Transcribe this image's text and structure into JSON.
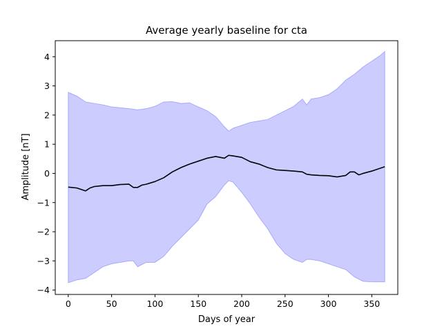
{
  "chart_data": {
    "type": "area",
    "title": "Average yearly baseline for cta",
    "xlabel": "Days of year",
    "ylabel": "Amplitude [nT]",
    "xlim": [
      -15,
      380
    ],
    "ylim": [
      -4.15,
      4.55
    ],
    "xticks": [
      0,
      50,
      100,
      150,
      200,
      250,
      300,
      350
    ],
    "yticks": [
      -4,
      -3,
      -2,
      -1,
      0,
      1,
      2,
      3,
      4
    ],
    "ytick_labels": [
      "−4",
      "−3",
      "−2",
      "−1",
      "0",
      "1",
      "2",
      "3",
      "4"
    ],
    "grid": false,
    "colors": {
      "band": "#0000ff",
      "band_opacity": 0.2,
      "line": "#000000"
    },
    "series": [
      {
        "kind": "band",
        "x": [
          0,
          10,
          20,
          30,
          40,
          50,
          60,
          70,
          75,
          80,
          90,
          100,
          110,
          120,
          130,
          140,
          150,
          160,
          170,
          180,
          185,
          190,
          200,
          210,
          220,
          230,
          240,
          250,
          260,
          270,
          275,
          280,
          290,
          300,
          310,
          320,
          330,
          340,
          350,
          360,
          365
        ],
        "upper": [
          2.78,
          2.65,
          2.45,
          2.4,
          2.35,
          2.28,
          2.25,
          2.22,
          2.2,
          2.18,
          2.22,
          2.3,
          2.45,
          2.46,
          2.4,
          2.42,
          2.28,
          2.15,
          1.95,
          1.6,
          1.45,
          1.55,
          1.65,
          1.75,
          1.8,
          1.85,
          2.0,
          2.15,
          2.3,
          2.55,
          2.35,
          2.55,
          2.6,
          2.7,
          2.9,
          3.2,
          3.4,
          3.65,
          3.85,
          4.05,
          4.18
        ],
        "lower": [
          -3.75,
          -3.65,
          -3.6,
          -3.4,
          -3.2,
          -3.1,
          -3.05,
          -3.0,
          -3.0,
          -3.2,
          -3.05,
          -3.05,
          -2.85,
          -2.5,
          -2.2,
          -1.9,
          -1.6,
          -1.05,
          -0.8,
          -0.4,
          -0.25,
          -0.3,
          -0.65,
          -1.05,
          -1.5,
          -1.9,
          -2.4,
          -2.75,
          -2.95,
          -3.05,
          -2.95,
          -2.95,
          -3.0,
          -3.1,
          -3.2,
          -3.3,
          -3.55,
          -3.7,
          -3.72,
          -3.72,
          -3.72
        ]
      },
      {
        "kind": "line",
        "x": [
          0,
          10,
          20,
          25,
          30,
          40,
          50,
          60,
          70,
          75,
          80,
          85,
          90,
          100,
          110,
          120,
          130,
          140,
          150,
          160,
          170,
          180,
          185,
          190,
          200,
          210,
          220,
          230,
          240,
          250,
          260,
          270,
          275,
          280,
          290,
          300,
          310,
          320,
          325,
          330,
          335,
          340,
          350,
          360,
          365
        ],
        "y": [
          -0.47,
          -0.5,
          -0.6,
          -0.5,
          -0.45,
          -0.42,
          -0.42,
          -0.38,
          -0.37,
          -0.48,
          -0.48,
          -0.4,
          -0.37,
          -0.28,
          -0.15,
          0.05,
          0.2,
          0.32,
          0.42,
          0.52,
          0.58,
          0.52,
          0.62,
          0.6,
          0.55,
          0.4,
          0.32,
          0.2,
          0.12,
          0.1,
          0.08,
          0.05,
          -0.03,
          -0.05,
          -0.07,
          -0.08,
          -0.12,
          -0.07,
          0.05,
          0.05,
          -0.05,
          0.0,
          0.08,
          0.18,
          0.23
        ]
      }
    ]
  }
}
